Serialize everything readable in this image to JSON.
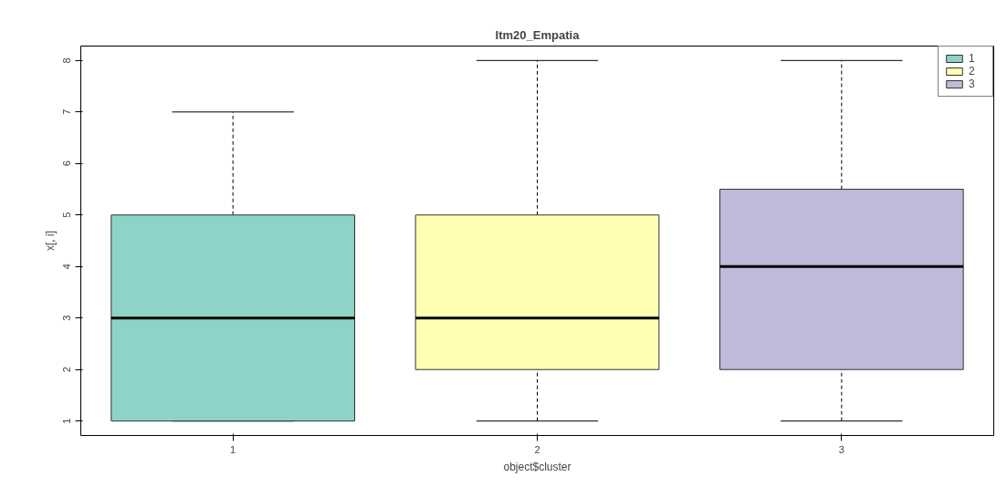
{
  "chart_data": {
    "type": "box",
    "title": "Itm20_Empatia",
    "xlabel": "object$cluster",
    "ylabel": "x[, i]",
    "categories": [
      "1",
      "2",
      "3"
    ],
    "ylim": [
      0.72,
      8.28
    ],
    "yticks": [
      1,
      2,
      3,
      4,
      5,
      6,
      7,
      8
    ],
    "grid": false,
    "legend": "top right",
    "line_style": "dashed",
    "series": [
      {
        "name": "1",
        "color": "#8dd3c7",
        "boxes": [
          {
            "low": 1,
            "q1": 1,
            "median": 3,
            "q3": 5,
            "high": 7
          },
          null,
          null
        ]
      },
      {
        "name": "2",
        "color": "#ffffb3",
        "boxes": [
          null,
          {
            "low": 1,
            "q1": 2,
            "median": 3,
            "q3": 5,
            "high": 8
          },
          null
        ]
      },
      {
        "name": "3",
        "color": "#bebada",
        "boxes": [
          null,
          null,
          {
            "low": 1,
            "q1": 2,
            "median": 4,
            "q3": 5.5,
            "high": 8
          }
        ]
      }
    ]
  }
}
